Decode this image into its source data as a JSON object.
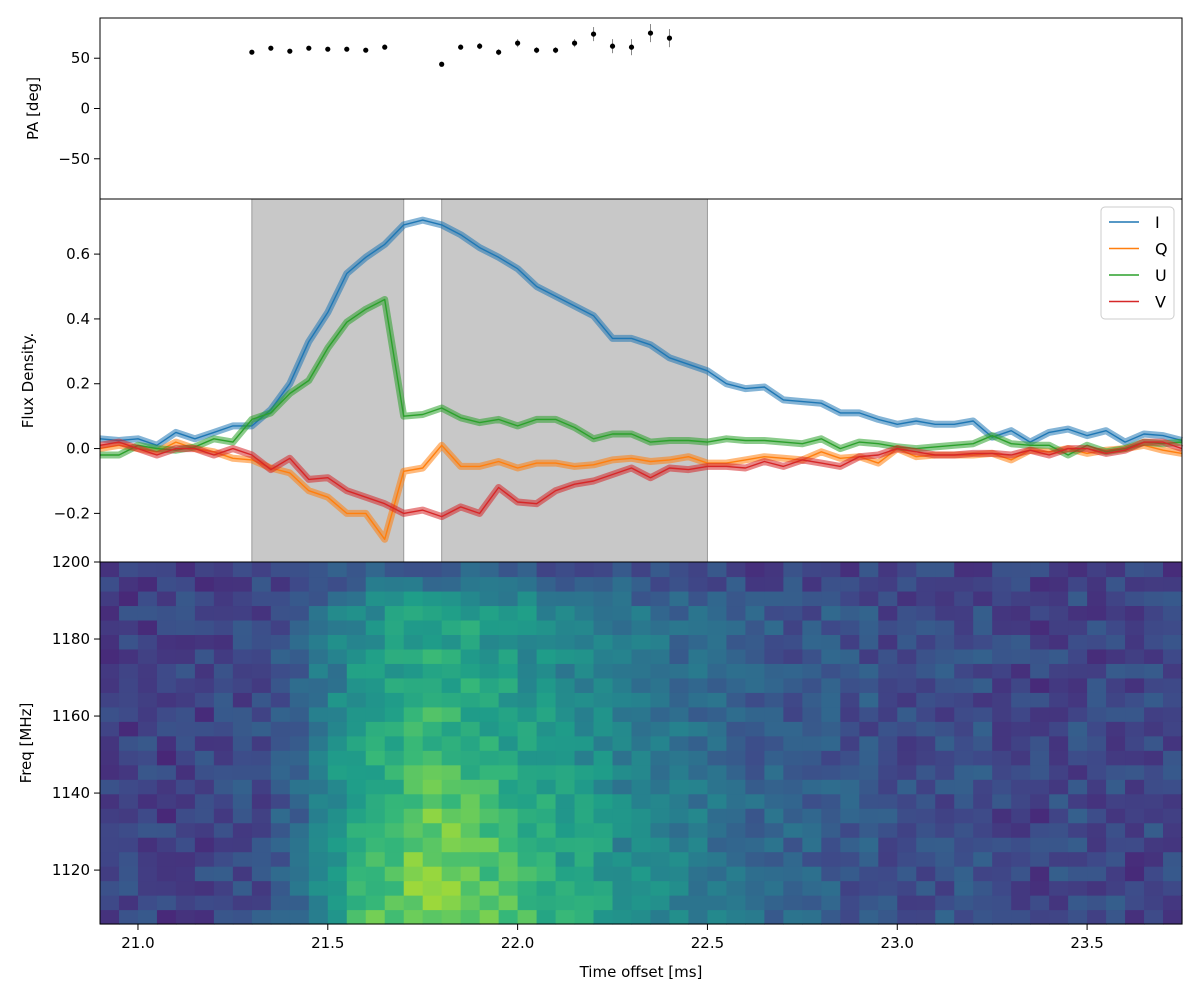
{
  "chart_data": [
    {
      "type": "scatter",
      "panel": "pa",
      "ylabel": "PA [deg]",
      "xlim": [
        20.9,
        23.75
      ],
      "ylim": [
        -90,
        90
      ],
      "yticks": [
        50,
        0,
        -50
      ],
      "ytick_labels": [
        "50",
        "0",
        "−50"
      ],
      "color": "#000000",
      "points": [
        {
          "x": 21.3,
          "y": 56,
          "err": 2
        },
        {
          "x": 21.35,
          "y": 60,
          "err": 2
        },
        {
          "x": 21.4,
          "y": 57,
          "err": 2
        },
        {
          "x": 21.45,
          "y": 60,
          "err": 2
        },
        {
          "x": 21.5,
          "y": 59,
          "err": 2
        },
        {
          "x": 21.55,
          "y": 59,
          "err": 2
        },
        {
          "x": 21.6,
          "y": 58,
          "err": 2
        },
        {
          "x": 21.65,
          "y": 61,
          "err": 2
        },
        {
          "x": 21.8,
          "y": 44,
          "err": 2
        },
        {
          "x": 21.85,
          "y": 61,
          "err": 2
        },
        {
          "x": 21.9,
          "y": 62,
          "err": 3
        },
        {
          "x": 21.95,
          "y": 56,
          "err": 3
        },
        {
          "x": 22.0,
          "y": 65,
          "err": 4
        },
        {
          "x": 22.05,
          "y": 58,
          "err": 3
        },
        {
          "x": 22.1,
          "y": 58,
          "err": 3
        },
        {
          "x": 22.15,
          "y": 65,
          "err": 4
        },
        {
          "x": 22.2,
          "y": 74,
          "err": 7
        },
        {
          "x": 22.25,
          "y": 62,
          "err": 7
        },
        {
          "x": 22.3,
          "y": 61,
          "err": 8
        },
        {
          "x": 22.35,
          "y": 75,
          "err": 9
        },
        {
          "x": 22.4,
          "y": 70,
          "err": 9
        }
      ]
    },
    {
      "type": "line",
      "panel": "flux",
      "ylabel": "Flux Density.",
      "xlim": [
        20.9,
        23.75
      ],
      "ylim": [
        -0.35,
        0.77
      ],
      "yticks": [
        0.6,
        0.4,
        0.2,
        0.0,
        -0.2
      ],
      "ytick_labels": [
        "0.6",
        "0.4",
        "0.2",
        "0.0",
        "−0.2"
      ],
      "shaded_regions": [
        [
          21.3,
          21.7
        ],
        [
          21.8,
          22.5
        ]
      ],
      "legend": {
        "location": "top-right",
        "entries": [
          "I",
          "Q",
          "U",
          "V"
        ]
      },
      "x": [
        20.9,
        20.95,
        21.0,
        21.05,
        21.1,
        21.15,
        21.2,
        21.25,
        21.3,
        21.35,
        21.4,
        21.45,
        21.5,
        21.55,
        21.6,
        21.65,
        21.7,
        21.75,
        21.8,
        21.85,
        21.9,
        21.95,
        22.0,
        22.05,
        22.1,
        22.15,
        22.2,
        22.25,
        22.3,
        22.35,
        22.4,
        22.45,
        22.5,
        22.55,
        22.6,
        22.65,
        22.7,
        22.75,
        22.8,
        22.85,
        22.9,
        22.95,
        23.0,
        23.05,
        23.1,
        23.15,
        23.2,
        23.25,
        23.3,
        23.35,
        23.4,
        23.45,
        23.5,
        23.55,
        23.6,
        23.65,
        23.7,
        23.75
      ],
      "series": [
        {
          "name": "I",
          "color": "#1f77b4",
          "values": [
            0.03,
            0.025,
            0.03,
            0.01,
            0.05,
            0.03,
            0.05,
            0.07,
            0.07,
            0.12,
            0.2,
            0.33,
            0.42,
            0.54,
            0.59,
            0.63,
            0.69,
            0.705,
            0.69,
            0.66,
            0.62,
            0.59,
            0.555,
            0.5,
            0.47,
            0.44,
            0.41,
            0.34,
            0.34,
            0.32,
            0.28,
            0.26,
            0.24,
            0.2,
            0.185,
            0.19,
            0.15,
            0.145,
            0.14,
            0.11,
            0.11,
            0.09,
            0.075,
            0.085,
            0.075,
            0.075,
            0.085,
            0.035,
            0.055,
            0.02,
            0.05,
            0.06,
            0.04,
            0.055,
            0.02,
            0.045,
            0.04,
            0.025
          ]
        },
        {
          "name": "Q",
          "color": "#ff7f0e",
          "values": [
            0.0,
            0.01,
            0.0,
            -0.01,
            0.02,
            0.0,
            -0.01,
            -0.03,
            -0.035,
            -0.06,
            -0.075,
            -0.13,
            -0.15,
            -0.2,
            -0.2,
            -0.28,
            -0.07,
            -0.06,
            0.01,
            -0.055,
            -0.055,
            -0.04,
            -0.06,
            -0.045,
            -0.045,
            -0.055,
            -0.05,
            -0.035,
            -0.03,
            -0.04,
            -0.035,
            -0.025,
            -0.045,
            -0.045,
            -0.035,
            -0.025,
            -0.03,
            -0.035,
            -0.01,
            -0.03,
            -0.025,
            -0.045,
            0.0,
            -0.025,
            -0.02,
            -0.02,
            -0.02,
            -0.015,
            -0.035,
            -0.005,
            -0.01,
            0.0,
            -0.015,
            -0.005,
            0.0,
            0.01,
            -0.005,
            -0.015
          ]
        },
        {
          "name": "U",
          "color": "#2ca02c",
          "values": [
            -0.02,
            -0.02,
            0.01,
            0.0,
            -0.005,
            0.005,
            0.03,
            0.02,
            0.09,
            0.11,
            0.17,
            0.21,
            0.31,
            0.39,
            0.43,
            0.46,
            0.1,
            0.105,
            0.125,
            0.095,
            0.08,
            0.09,
            0.07,
            0.09,
            0.09,
            0.065,
            0.03,
            0.045,
            0.045,
            0.02,
            0.025,
            0.025,
            0.02,
            0.03,
            0.025,
            0.025,
            0.02,
            0.015,
            0.03,
            0.0,
            0.02,
            0.015,
            0.005,
            0.0,
            0.005,
            0.01,
            0.015,
            0.04,
            0.015,
            0.01,
            0.01,
            -0.02,
            0.01,
            -0.01,
            0.0,
            0.02,
            0.015,
            0.02
          ]
        },
        {
          "name": "V",
          "color": "#d62728",
          "values": [
            0.01,
            0.02,
            0.0,
            -0.02,
            0.0,
            0.0,
            -0.02,
            0.0,
            -0.02,
            -0.065,
            -0.03,
            -0.095,
            -0.09,
            -0.13,
            -0.15,
            -0.17,
            -0.2,
            -0.19,
            -0.21,
            -0.18,
            -0.2,
            -0.12,
            -0.165,
            -0.17,
            -0.13,
            -0.11,
            -0.1,
            -0.08,
            -0.06,
            -0.09,
            -0.06,
            -0.065,
            -0.055,
            -0.055,
            -0.06,
            -0.04,
            -0.055,
            -0.035,
            -0.045,
            -0.055,
            -0.025,
            -0.02,
            0.0,
            -0.01,
            -0.02,
            -0.02,
            -0.015,
            -0.015,
            -0.02,
            -0.005,
            -0.02,
            0.0,
            0.0,
            -0.015,
            -0.005,
            0.02,
            0.02,
            0.0
          ]
        }
      ]
    },
    {
      "type": "heatmap",
      "panel": "dynamic-spectrum",
      "xlabel": "Time offset [ms]",
      "ylabel": "Freq [MHz]",
      "xlim": [
        20.9,
        23.75
      ],
      "ylim": [
        1106,
        1200
      ],
      "xticks": [
        21.0,
        21.5,
        22.0,
        22.5,
        23.0,
        23.5
      ],
      "xtick_labels": [
        "21.0",
        "21.5",
        "22.0",
        "22.5",
        "23.0",
        "23.5"
      ],
      "yticks": [
        1200,
        1180,
        1160,
        1140,
        1120
      ],
      "ytick_labels": [
        "1200",
        "1180",
        "1160",
        "1140",
        "1120"
      ],
      "colormap": "viridis",
      "time_bin_ms": 0.05,
      "freq_channels": 25,
      "time_profile": [
        0.03,
        0.025,
        0.03,
        0.01,
        0.05,
        0.03,
        0.05,
        0.07,
        0.07,
        0.12,
        0.2,
        0.33,
        0.42,
        0.54,
        0.59,
        0.63,
        0.69,
        0.705,
        0.69,
        0.66,
        0.62,
        0.59,
        0.555,
        0.5,
        0.47,
        0.44,
        0.41,
        0.34,
        0.34,
        0.32,
        0.28,
        0.26,
        0.24,
        0.2,
        0.185,
        0.19,
        0.15,
        0.145,
        0.14,
        0.11,
        0.11,
        0.09,
        0.075,
        0.085,
        0.075,
        0.075,
        0.085,
        0.035,
        0.055,
        0.02,
        0.05,
        0.06,
        0.04,
        0.055,
        0.02,
        0.045,
        0.04
      ],
      "band_weight_low_to_high": [
        1.0,
        1.0,
        0.98,
        0.97,
        0.96,
        0.95,
        0.93,
        0.9,
        0.88,
        0.85,
        0.82,
        0.8,
        0.78,
        0.76,
        0.74,
        0.72,
        0.7,
        0.68,
        0.66,
        0.65,
        0.64,
        0.62,
        0.5,
        0.35,
        0.2
      ]
    }
  ]
}
